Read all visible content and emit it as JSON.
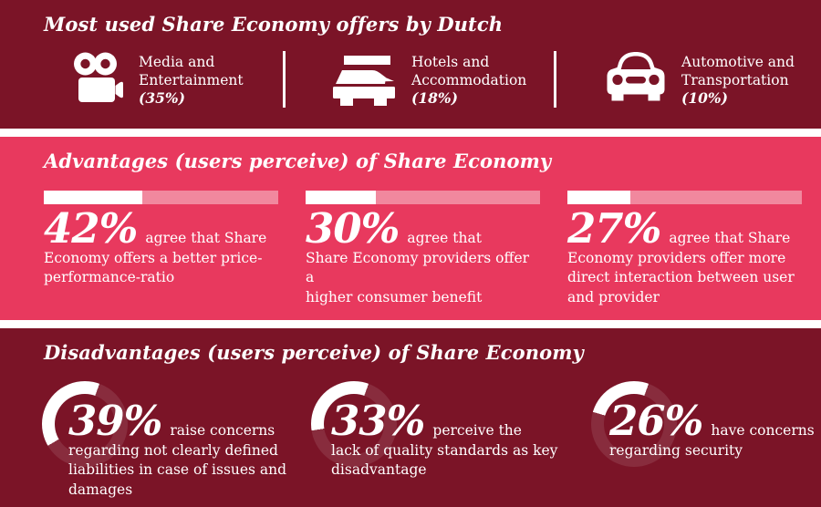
{
  "colors": {
    "dark_band": "#7B1427",
    "pink_band": "#E8395E",
    "text": "#FFFFFF",
    "bar_fill": "#FFFFFF",
    "bar_track": "rgba(255,255,255,0.40)",
    "donut_arc": "#FFFFFF",
    "donut_track": "rgba(255,255,255,0.10)"
  },
  "top": {
    "title": "Most used Share Economy offers by Dutch",
    "offers": [
      {
        "icon": "video-camera-icon",
        "label": "Media and\nEntertainment",
        "pct_label": "(35%)",
        "value": 35
      },
      {
        "icon": "bed-icon",
        "label": "Hotels and\nAccommodation",
        "pct_label": "(18%)",
        "value": 18
      },
      {
        "icon": "car-icon",
        "label": "Automotive and\nTransportation",
        "pct_label": "(10%)",
        "value": 10
      }
    ]
  },
  "advantages": {
    "title": "Advantages (users perceive) of Share Economy",
    "items": [
      {
        "value": 42,
        "pct_label": "42%",
        "text": "agree that Share\nEconomy offers a better price-\nperformance-ratio"
      },
      {
        "value": 30,
        "pct_label": "30%",
        "text": "agree that\nShare Economy providers offer a\nhigher consumer benefit"
      },
      {
        "value": 27,
        "pct_label": "27%",
        "text": "agree that Share\nEconomy providers offer more\ndirect interaction between user\nand provider"
      }
    ]
  },
  "disadvantages": {
    "title": "Disadvantages (users perceive) of Share Economy",
    "items": [
      {
        "value": 39,
        "pct_label": "39%",
        "text": "raise concerns\nregarding not clearly defined\nliabilities in case of issues and\ndamages"
      },
      {
        "value": 33,
        "pct_label": "33%",
        "text": "perceive the\nlack of quality standards as key\ndisadvantage"
      },
      {
        "value": 26,
        "pct_label": "26%",
        "text": "have concerns\nregarding security"
      }
    ]
  },
  "chart_data": [
    {
      "type": "table",
      "title": "Most used Share Economy offers by Dutch",
      "categories": [
        "Media and Entertainment",
        "Hotels and Accommodation",
        "Automotive and Transportation"
      ],
      "values": [
        35,
        18,
        10
      ],
      "unit": "%"
    },
    {
      "type": "bar",
      "title": "Advantages (users perceive) of Share Economy",
      "categories": [
        "agree that Share Economy offers a better price-performance-ratio",
        "agree that Share Economy providers offer a higher consumer benefit",
        "agree that Share Economy providers offer more direct interaction between user and provider"
      ],
      "values": [
        42,
        30,
        27
      ],
      "xlabel": "",
      "ylabel": "",
      "ylim": [
        0,
        100
      ],
      "unit": "%",
      "legend": false,
      "grid": false
    },
    {
      "type": "pie",
      "title": "Disadvantages (users perceive) of Share Economy",
      "categories": [
        "raise concerns regarding not clearly defined liabilities in case of issues and damages",
        "perceive the lack of quality standards as key disadvantage",
        "have concerns regarding security"
      ],
      "values": [
        39,
        33,
        26
      ],
      "unit": "%",
      "style": "donut, arc of each donut = value of 360°",
      "legend": false
    }
  ]
}
